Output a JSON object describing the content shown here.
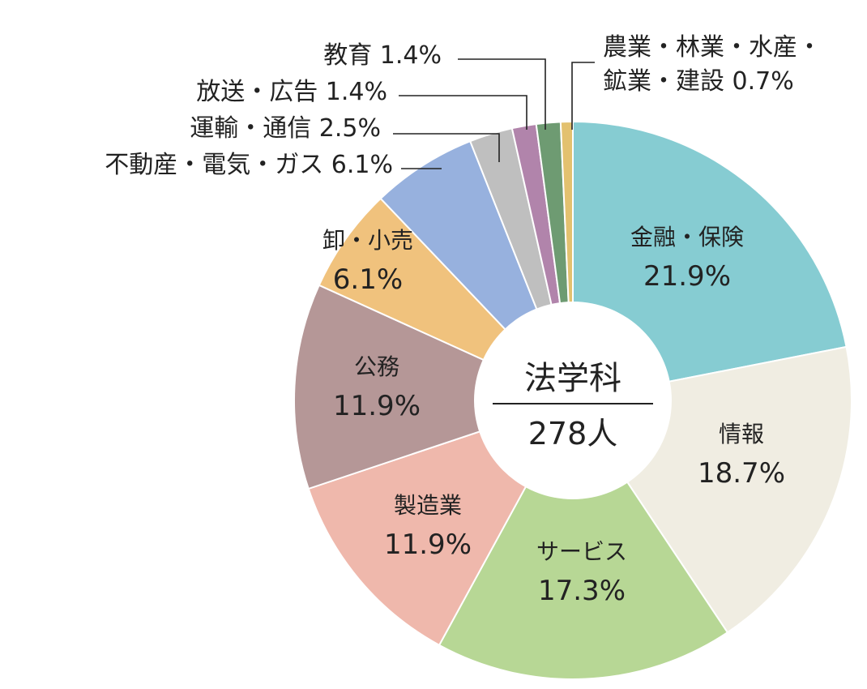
{
  "chart_data": {
    "type": "pie",
    "center_title": "法学科",
    "center_subtitle": "278人",
    "slices": [
      {
        "label": "金融・保険",
        "value": 21.9,
        "value_label": "21.9%",
        "color": "#86ccd2"
      },
      {
        "label": "情報",
        "value": 18.7,
        "value_label": "18.7%",
        "color": "#f0ede2"
      },
      {
        "label": "サービス",
        "value": 17.3,
        "value_label": "17.3%",
        "color": "#b7d795"
      },
      {
        "label": "製造業",
        "value": 11.9,
        "value_label": "11.9%",
        "color": "#efb8ac"
      },
      {
        "label": "公務",
        "value": 11.9,
        "value_label": "11.9%",
        "color": "#b59797"
      },
      {
        "label": "卸・小売",
        "value": 6.1,
        "value_label": "6.1%",
        "color": "#f0c27d"
      },
      {
        "label": "不動産・電気・ガス",
        "value": 6.1,
        "value_label": "6.1%",
        "color": "#97b1de"
      },
      {
        "label": "運輸・通信",
        "value": 2.5,
        "value_label": "2.5%",
        "color": "#bfbfbf"
      },
      {
        "label": "放送・広告",
        "value": 1.4,
        "value_label": "1.4%",
        "color": "#b184ab"
      },
      {
        "label": "教育",
        "value": 1.4,
        "value_label": "1.4%",
        "color": "#6e9b72"
      },
      {
        "label": "農業・林業・水産・鉱業・建設",
        "label_lines": [
          "農業・林業・水産・",
          "鉱業・建設"
        ],
        "value": 0.7,
        "value_label": "0.7%",
        "color": "#e3c16f"
      }
    ]
  }
}
